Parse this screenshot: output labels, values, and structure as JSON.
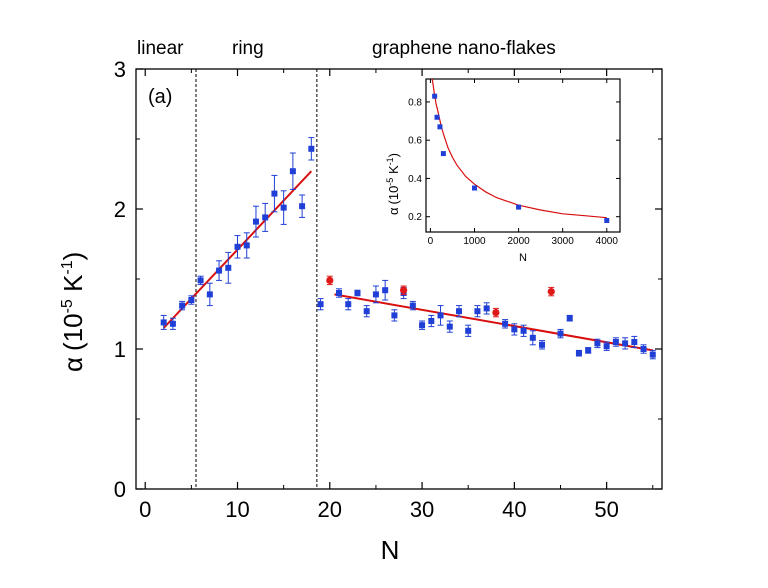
{
  "panel_label": "(a)",
  "regions": {
    "linear": "linear",
    "ring": "ring",
    "flakes": "graphene nano-flakes"
  },
  "colors": {
    "blue": "#1f3fd6",
    "red": "#e01818",
    "fit": "#d81010"
  },
  "chart_data": [
    {
      "type": "scatter",
      "title": "",
      "xlabel": "N",
      "ylabel_symbol": "α",
      "ylabel_base": "(10",
      "ylabel_exp1": "-5",
      "ylabel_mid": " K",
      "ylabel_exp2": "-1",
      "ylabel_end": ")",
      "xlim": [
        -1,
        56
      ],
      "ylim": [
        0,
        3
      ],
      "xticks": [
        0,
        10,
        20,
        30,
        40,
        50
      ],
      "yticks": [
        0,
        1,
        2,
        3
      ],
      "dividers_x": [
        5.5,
        18.6
      ],
      "series": [
        {
          "name": "linear and ring (blue)",
          "color": "blue",
          "points": [
            {
              "x": 2,
              "y": 1.19,
              "err": 0.05
            },
            {
              "x": 3,
              "y": 1.18,
              "err": 0.04
            },
            {
              "x": 4,
              "y": 1.31,
              "err": 0.03
            },
            {
              "x": 5,
              "y": 1.35,
              "err": 0.03
            },
            {
              "x": 6,
              "y": 1.49,
              "err": 0.03
            },
            {
              "x": 7,
              "y": 1.39,
              "err": 0.08
            },
            {
              "x": 8,
              "y": 1.56,
              "err": 0.07
            },
            {
              "x": 9,
              "y": 1.58,
              "err": 0.11
            },
            {
              "x": 10,
              "y": 1.73,
              "err": 0.08
            },
            {
              "x": 11,
              "y": 1.74,
              "err": 0.09
            },
            {
              "x": 12,
              "y": 1.91,
              "err": 0.11
            },
            {
              "x": 13,
              "y": 1.94,
              "err": 0.1
            },
            {
              "x": 14,
              "y": 2.11,
              "err": 0.13
            },
            {
              "x": 15,
              "y": 2.01,
              "err": 0.12
            },
            {
              "x": 16,
              "y": 2.27,
              "err": 0.13
            },
            {
              "x": 17,
              "y": 2.02,
              "err": 0.08
            },
            {
              "x": 18,
              "y": 2.43,
              "err": 0.08
            }
          ]
        },
        {
          "name": "graphene nano-flakes (blue)",
          "color": "blue",
          "points": [
            {
              "x": 19,
              "y": 1.32,
              "err": 0.04
            },
            {
              "x": 21,
              "y": 1.4,
              "err": 0.03
            },
            {
              "x": 22,
              "y": 1.32,
              "err": 0.04
            },
            {
              "x": 23,
              "y": 1.4,
              "err": 0.02
            },
            {
              "x": 24,
              "y": 1.27,
              "err": 0.04
            },
            {
              "x": 25,
              "y": 1.39,
              "err": 0.06
            },
            {
              "x": 26,
              "y": 1.42,
              "err": 0.07
            },
            {
              "x": 27,
              "y": 1.24,
              "err": 0.04
            },
            {
              "x": 28,
              "y": 1.4,
              "err": 0.04
            },
            {
              "x": 29,
              "y": 1.31,
              "err": 0.03
            },
            {
              "x": 30,
              "y": 1.17,
              "err": 0.03
            },
            {
              "x": 31,
              "y": 1.2,
              "err": 0.04
            },
            {
              "x": 32,
              "y": 1.24,
              "err": 0.07
            },
            {
              "x": 33,
              "y": 1.16,
              "err": 0.04
            },
            {
              "x": 34,
              "y": 1.27,
              "err": 0.04
            },
            {
              "x": 35,
              "y": 1.13,
              "err": 0.04
            },
            {
              "x": 36,
              "y": 1.27,
              "err": 0.04
            },
            {
              "x": 37,
              "y": 1.29,
              "err": 0.04
            },
            {
              "x": 39,
              "y": 1.18,
              "err": 0.03
            },
            {
              "x": 40,
              "y": 1.14,
              "err": 0.04
            },
            {
              "x": 41,
              "y": 1.13,
              "err": 0.04
            },
            {
              "x": 42,
              "y": 1.08,
              "err": 0.05
            },
            {
              "x": 43,
              "y": 1.03,
              "err": 0.03
            },
            {
              "x": 45,
              "y": 1.11,
              "err": 0.03
            },
            {
              "x": 46,
              "y": 1.22,
              "err": 0.02
            },
            {
              "x": 47,
              "y": 0.97,
              "err": 0.02
            },
            {
              "x": 48,
              "y": 0.99,
              "err": 0.02
            },
            {
              "x": 49,
              "y": 1.04,
              "err": 0.03
            },
            {
              "x": 50,
              "y": 1.02,
              "err": 0.03
            },
            {
              "x": 51,
              "y": 1.05,
              "err": 0.03
            },
            {
              "x": 52,
              "y": 1.04,
              "err": 0.04
            },
            {
              "x": 53,
              "y": 1.05,
              "err": 0.04
            },
            {
              "x": 54,
              "y": 1.0,
              "err": 0.03
            },
            {
              "x": 55,
              "y": 0.96,
              "err": 0.03
            }
          ]
        },
        {
          "name": "graphene nano-flakes (red)",
          "color": "red",
          "points": [
            {
              "x": 20,
              "y": 1.49,
              "err": 0.03
            },
            {
              "x": 28,
              "y": 1.42,
              "err": 0.03
            },
            {
              "x": 38,
              "y": 1.26,
              "err": 0.03
            },
            {
              "x": 44,
              "y": 1.41,
              "err": 0.03
            }
          ]
        }
      ],
      "fits": [
        {
          "name": "linear fit (linear/ring)",
          "x": [
            2,
            18
          ],
          "y": [
            1.15,
            2.27
          ]
        },
        {
          "name": "linear fit (flakes)",
          "x": [
            20.5,
            55
          ],
          "y": [
            1.39,
            0.99
          ]
        }
      ]
    },
    {
      "type": "scatter",
      "title": "inset",
      "xlabel": "N",
      "ylabel_symbol": "α",
      "ylabel_base": "(10",
      "ylabel_exp1": "-5",
      "ylabel_mid": " K",
      "ylabel_exp2": "-1",
      "ylabel_end": ")",
      "xlim": [
        -100,
        4300
      ],
      "ylim": [
        0.12,
        0.92
      ],
      "xticks": [
        0,
        1000,
        2000,
        3000,
        4000
      ],
      "yticks": [
        0.2,
        0.4,
        0.6,
        0.8
      ],
      "ytick_labels": [
        "0.2",
        "0.4",
        "0.6",
        "0.8"
      ],
      "points": [
        {
          "x": 96,
          "y": 0.83
        },
        {
          "x": 150,
          "y": 0.72
        },
        {
          "x": 216,
          "y": 0.67
        },
        {
          "x": 294,
          "y": 0.53
        },
        {
          "x": 1000,
          "y": 0.35
        },
        {
          "x": 2000,
          "y": 0.25
        },
        {
          "x": 4000,
          "y": 0.18
        }
      ],
      "fit_curve": {
        "x": [
          40,
          60,
          80,
          100,
          130,
          160,
          200,
          250,
          300,
          400,
          500,
          600,
          800,
          1000,
          1250,
          1500,
          1750,
          2000,
          2500,
          3000,
          3500,
          4000
        ],
        "y": [
          0.92,
          0.89,
          0.86,
          0.83,
          0.79,
          0.76,
          0.72,
          0.67,
          0.63,
          0.56,
          0.51,
          0.47,
          0.41,
          0.37,
          0.33,
          0.3,
          0.28,
          0.26,
          0.235,
          0.215,
          0.205,
          0.195
        ]
      }
    }
  ]
}
